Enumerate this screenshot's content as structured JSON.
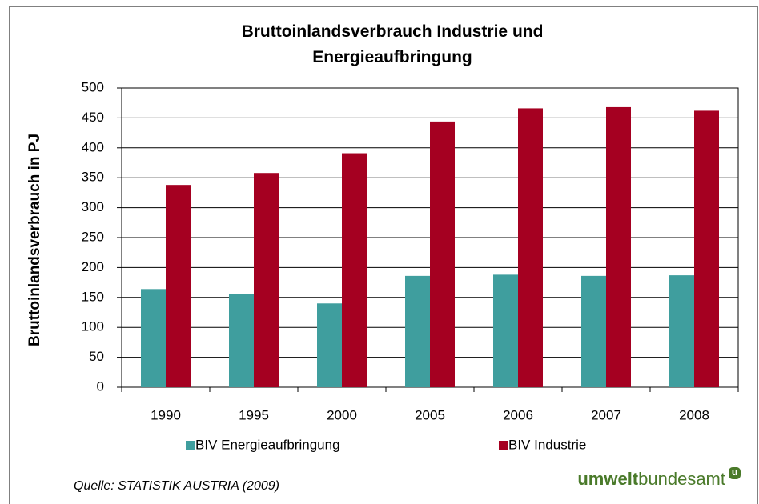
{
  "chart_data": {
    "type": "bar",
    "title": "Bruttoinlandsverbrauch Industrie und Energieaufbringung",
    "y_label": "Bruttoinlandsverbrauch in PJ",
    "categories": [
      "1990",
      "1995",
      "2000",
      "2005",
      "2006",
      "2007",
      "2008"
    ],
    "series": [
      {
        "name": "BIV Energieaufbringung",
        "color": "#3f9e9e",
        "values": [
          164,
          156,
          140,
          186,
          188,
          186,
          187
        ]
      },
      {
        "name": "BIV Industrie",
        "color": "#a50021",
        "values": [
          338,
          358,
          391,
          444,
          466,
          468,
          462
        ]
      }
    ],
    "ylim": [
      0,
      500
    ],
    "yticks": [
      0,
      50,
      100,
      150,
      200,
      250,
      300,
      350,
      400,
      450,
      500
    ],
    "grid": true,
    "source": "Quelle: STATISTIK AUSTRIA (2009)",
    "logo": {
      "bold": "umwelt",
      "regular": "bundesamt",
      "badge": "u"
    }
  }
}
